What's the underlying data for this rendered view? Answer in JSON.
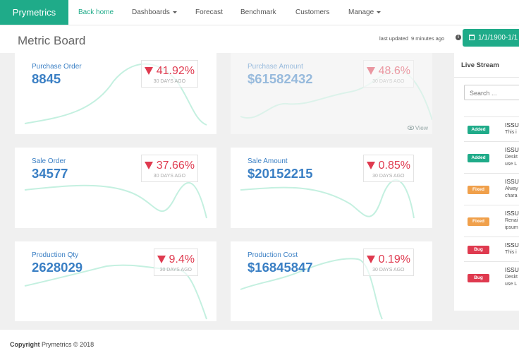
{
  "brand": "Prymetrics",
  "nav": [
    {
      "label": "Back home",
      "active": true
    },
    {
      "label": "Dashboards",
      "dropdown": true
    },
    {
      "label": "Forecast"
    },
    {
      "label": "Benchmark"
    },
    {
      "label": "Customers"
    },
    {
      "label": "Manage",
      "dropdown": true
    }
  ],
  "header": {
    "title": "Metric Board",
    "updated_label": "last updated",
    "updated_value": "9 minutes ago",
    "date_range": "1/1/1900-1/1"
  },
  "cards": [
    {
      "title": "Purchase Order",
      "value": "8845",
      "change": "41.92%",
      "period": "30 DAYS AGO"
    },
    {
      "title": "Purchase Amount",
      "value": "$61582432",
      "change": "48.6%",
      "period": "30 DAYS AGO",
      "muted": true,
      "link": "View"
    },
    {
      "title": "Sale Order",
      "value": "34577",
      "change": "37.66%",
      "period": "30 DAYS AGO"
    },
    {
      "title": "Sale Amount",
      "value": "$20152215",
      "change": "0.85%",
      "period": "30 DAYS AGO"
    },
    {
      "title": "Production Qty",
      "value": "2628029",
      "change": "9.4%",
      "period": "30 DAYS AGO"
    },
    {
      "title": "Production Cost",
      "value": "$16845847",
      "change": "0.19%",
      "period": "30 DAYS AGO"
    }
  ],
  "live_stream": {
    "title": "Live Stream",
    "search_placeholder": "Search ...",
    "items": [
      {
        "badge": "Added",
        "title": "ISSU",
        "lines": [
          "This i"
        ]
      },
      {
        "badge": "Added",
        "title": "ISSU",
        "lines": [
          "Deskt",
          "use L"
        ]
      },
      {
        "badge": "Fixed",
        "title": "ISSU",
        "lines": [
          "Alway",
          "chara"
        ]
      },
      {
        "badge": "Fixed",
        "title": "ISSU",
        "lines": [
          "Renai",
          "ipsum"
        ]
      },
      {
        "badge": "Bug",
        "title": "ISSU",
        "lines": [
          "This i"
        ]
      },
      {
        "badge": "Bug",
        "title": "ISSU",
        "lines": [
          "Deskt",
          "use L"
        ]
      }
    ]
  },
  "footer": {
    "bold": "Copyright",
    "text": "Prymetrics © 2018"
  }
}
